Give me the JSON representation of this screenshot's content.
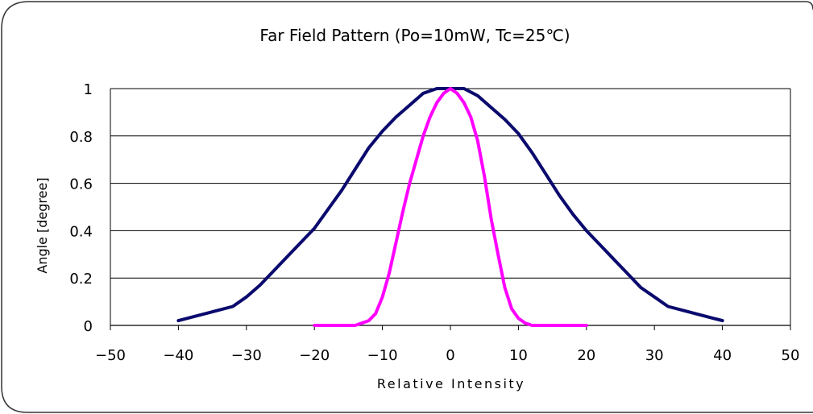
{
  "chart_data": {
    "type": "line",
    "title": "Far Field Pattern (Po=10mW, Tc=25℃)",
    "xlabel": "Relative Intensity",
    "ylabel": "Angle [degree]",
    "xlim": [
      -50,
      50
    ],
    "ylim": [
      0,
      1
    ],
    "xticks": [
      "−50",
      "−40",
      "−30",
      "−20",
      "−10",
      "0",
      "10",
      "20",
      "30",
      "40",
      "50"
    ],
    "xtick_values": [
      -50,
      -40,
      -30,
      -20,
      -10,
      0,
      10,
      20,
      30,
      40,
      50
    ],
    "yticks": [
      "0",
      "0.2",
      "0.4",
      "0.6",
      "0.8",
      "1"
    ],
    "ytick_values": [
      0,
      0.2,
      0.4,
      0.6,
      0.8,
      1
    ],
    "grid": "horizontal",
    "series": [
      {
        "color": "#0a0a6e",
        "x": [
          -40,
          -36,
          -32,
          -30,
          -28,
          -26,
          -24,
          -22,
          -20,
          -18,
          -16,
          -14,
          -12,
          -10,
          -8,
          -6,
          -4,
          -2,
          0,
          2,
          4,
          6,
          8,
          10,
          12,
          14,
          16,
          18,
          20,
          22,
          24,
          26,
          28,
          30,
          32,
          36,
          40
        ],
        "values": [
          0.02,
          0.05,
          0.08,
          0.12,
          0.17,
          0.23,
          0.29,
          0.35,
          0.41,
          0.49,
          0.57,
          0.66,
          0.75,
          0.82,
          0.88,
          0.93,
          0.98,
          1.0,
          1.0,
          1.0,
          0.97,
          0.92,
          0.87,
          0.81,
          0.73,
          0.64,
          0.55,
          0.47,
          0.4,
          0.34,
          0.28,
          0.22,
          0.16,
          0.12,
          0.08,
          0.05,
          0.02
        ]
      },
      {
        "color": "#ff00ff",
        "x": [
          -20,
          -18,
          -16,
          -14,
          -12,
          -11,
          -10,
          -9,
          -8,
          -7,
          -6,
          -5,
          -4,
          -3,
          -2,
          -1,
          0,
          1,
          2,
          3,
          4,
          5,
          6,
          7,
          8,
          9,
          10,
          11,
          12,
          14,
          16,
          18,
          20
        ],
        "values": [
          0.0,
          0.0,
          0.0,
          0.0,
          0.02,
          0.05,
          0.12,
          0.22,
          0.35,
          0.48,
          0.6,
          0.7,
          0.8,
          0.88,
          0.94,
          0.98,
          1.0,
          0.98,
          0.94,
          0.88,
          0.78,
          0.63,
          0.45,
          0.3,
          0.16,
          0.07,
          0.03,
          0.01,
          0.0,
          0.0,
          0.0,
          0.0,
          0.0
        ]
      }
    ]
  }
}
